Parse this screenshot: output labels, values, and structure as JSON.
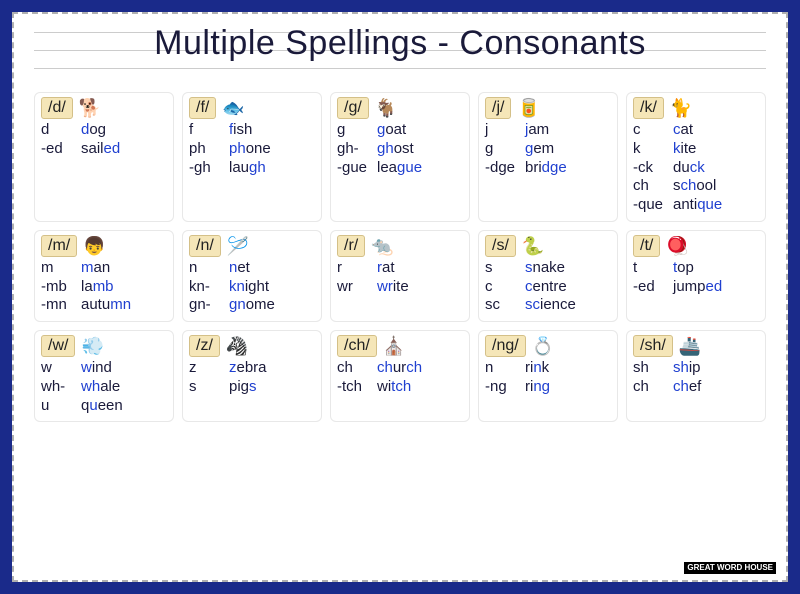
{
  "title": "Multiple Spellings - Consonants",
  "colors": {
    "frame": "#1a2a8a",
    "highlight": "#2040d0",
    "label_bg": "#f5e6b8",
    "label_border": "#d4c088",
    "text": "#1a1a3a"
  },
  "rows": [
    [
      {
        "sound": "/d/",
        "icon": "🐕",
        "entries": [
          {
            "sp": "d",
            "pre": "",
            "hl": "d",
            "post": "og"
          },
          {
            "sp": "-ed",
            "pre": "sail",
            "hl": "ed",
            "post": ""
          }
        ]
      },
      {
        "sound": "/f/",
        "icon": "🐟",
        "entries": [
          {
            "sp": "f",
            "pre": "",
            "hl": "f",
            "post": "ish"
          },
          {
            "sp": "ph",
            "pre": "",
            "hl": "ph",
            "post": "one"
          },
          {
            "sp": "-gh",
            "pre": "lau",
            "hl": "gh",
            "post": ""
          }
        ]
      },
      {
        "sound": "/g/",
        "icon": "🐐",
        "entries": [
          {
            "sp": "g",
            "pre": "",
            "hl": "g",
            "post": "oat"
          },
          {
            "sp": "gh-",
            "pre": "",
            "hl": "gh",
            "post": "ost"
          },
          {
            "sp": "-gue",
            "pre": "lea",
            "hl": "gue",
            "post": ""
          }
        ]
      },
      {
        "sound": "/j/",
        "icon": "🥫",
        "entries": [
          {
            "sp": "j",
            "pre": "",
            "hl": "j",
            "post": "am"
          },
          {
            "sp": "g",
            "pre": "",
            "hl": "g",
            "post": "em"
          },
          {
            "sp": "-dge",
            "pre": "bri",
            "hl": "dge",
            "post": ""
          }
        ]
      },
      {
        "sound": "/k/",
        "icon": "🐈",
        "entries": [
          {
            "sp": "c",
            "pre": "",
            "hl": "c",
            "post": "at"
          },
          {
            "sp": "k",
            "pre": "",
            "hl": "k",
            "post": "ite"
          },
          {
            "sp": "-ck",
            "pre": "du",
            "hl": "ck",
            "post": ""
          },
          {
            "sp": "ch",
            "pre": "s",
            "hl": "ch",
            "post": "ool"
          },
          {
            "sp": "-que",
            "pre": "anti",
            "hl": "que",
            "post": ""
          }
        ]
      }
    ],
    [
      {
        "sound": "/m/",
        "icon": "👦",
        "entries": [
          {
            "sp": "m",
            "pre": "",
            "hl": "m",
            "post": "an"
          },
          {
            "sp": "-mb",
            "pre": "la",
            "hl": "mb",
            "post": ""
          },
          {
            "sp": "-mn",
            "pre": "autu",
            "hl": "mn",
            "post": ""
          }
        ]
      },
      {
        "sound": "/n/",
        "icon": "🪡",
        "entries": [
          {
            "sp": "n",
            "pre": "",
            "hl": "n",
            "post": "et"
          },
          {
            "sp": "kn-",
            "pre": "",
            "hl": "kn",
            "post": "ight"
          },
          {
            "sp": "gn-",
            "pre": "",
            "hl": "gn",
            "post": "ome"
          }
        ]
      },
      {
        "sound": "/r/",
        "icon": "🐀",
        "entries": [
          {
            "sp": "r",
            "pre": "",
            "hl": "r",
            "post": "at"
          },
          {
            "sp": "wr",
            "pre": "",
            "hl": "wr",
            "post": "ite"
          }
        ]
      },
      {
        "sound": "/s/",
        "icon": "🐍",
        "entries": [
          {
            "sp": "s",
            "pre": "",
            "hl": "s",
            "post": "nake"
          },
          {
            "sp": "c",
            "pre": "",
            "hl": "c",
            "post": "entre"
          },
          {
            "sp": "sc",
            "pre": "",
            "hl": "sc",
            "post": "ience"
          }
        ]
      },
      {
        "sound": "/t/",
        "icon": "🪀",
        "entries": [
          {
            "sp": "t",
            "pre": "",
            "hl": "t",
            "post": "op"
          },
          {
            "sp": "-ed",
            "pre": "jump",
            "hl": "ed",
            "post": ""
          }
        ]
      }
    ],
    [
      {
        "sound": "/w/",
        "icon": "💨",
        "entries": [
          {
            "sp": "w",
            "pre": "",
            "hl": "w",
            "post": "ind"
          },
          {
            "sp": "wh-",
            "pre": "",
            "hl": "wh",
            "post": "ale"
          },
          {
            "sp": "u",
            "pre": "q",
            "hl": "u",
            "post": "een"
          }
        ]
      },
      {
        "sound": "/z/",
        "icon": "🦓",
        "entries": [
          {
            "sp": "z",
            "pre": "",
            "hl": "z",
            "post": "ebra"
          },
          {
            "sp": "s",
            "pre": "pig",
            "hl": "s",
            "post": ""
          }
        ]
      },
      {
        "sound": "/ch/",
        "icon": "⛪",
        "entries": [
          {
            "sp": "ch",
            "pre": "",
            "hl": "ch",
            "post": "ur",
            "hl2": "ch",
            "post2": ""
          },
          {
            "sp": "-tch",
            "pre": "wi",
            "hl": "tch",
            "post": ""
          }
        ]
      },
      {
        "sound": "/ng/",
        "icon": "💍",
        "entries": [
          {
            "sp": "n",
            "pre": "ri",
            "hl": "n",
            "post": "k"
          },
          {
            "sp": "-ng",
            "pre": "ri",
            "hl": "ng",
            "post": ""
          }
        ]
      },
      {
        "sound": "/sh/",
        "icon": "🚢",
        "entries": [
          {
            "sp": "sh",
            "pre": "",
            "hl": "sh",
            "post": "ip"
          },
          {
            "sp": "ch",
            "pre": "",
            "hl": "ch",
            "post": "ef"
          }
        ]
      }
    ]
  ],
  "footer": {
    "brand": "GREAT WORD HOUSE"
  }
}
